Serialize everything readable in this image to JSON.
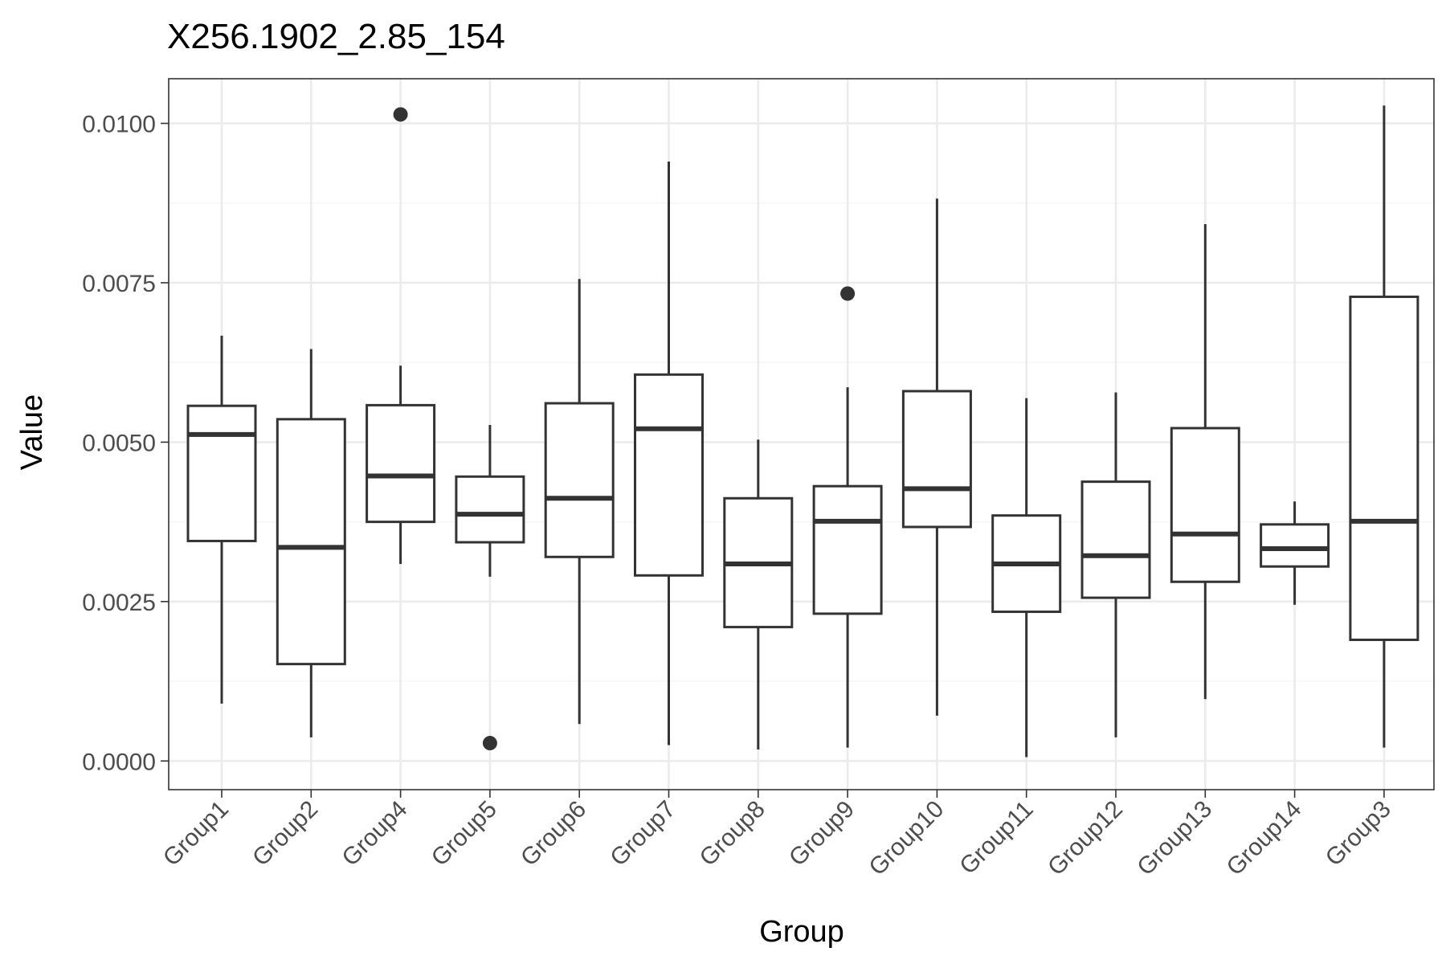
{
  "chart_data": {
    "type": "boxplot",
    "title": "X256.1902_2.85_154",
    "xlabel": "Group",
    "ylabel": "Value",
    "ylim": [
      -0.00045,
      0.0107
    ],
    "yticks": [
      0.0,
      0.0025,
      0.005,
      0.0075,
      0.01
    ],
    "ytick_labels": [
      "0.0000",
      "0.0025",
      "0.0050",
      "0.0075",
      "0.0100"
    ],
    "grid": true,
    "categories": [
      "Group1",
      "Group2",
      "Group4",
      "Group5",
      "Group6",
      "Group7",
      "Group8",
      "Group9",
      "Group10",
      "Group11",
      "Group12",
      "Group13",
      "Group14",
      "Group3"
    ],
    "boxes": [
      {
        "group": "Group1",
        "whisker_low": 0.0009,
        "q1": 0.00345,
        "median": 0.00512,
        "q3": 0.00557,
        "whisker_high": 0.00667,
        "outliers": []
      },
      {
        "group": "Group2",
        "whisker_low": 0.00037,
        "q1": 0.00152,
        "median": 0.00335,
        "q3": 0.00536,
        "whisker_high": 0.00646,
        "outliers": []
      },
      {
        "group": "Group4",
        "whisker_low": 0.00309,
        "q1": 0.00375,
        "median": 0.00447,
        "q3": 0.00558,
        "whisker_high": 0.0062,
        "outliers": [
          0.01014
        ]
      },
      {
        "group": "Group5",
        "whisker_low": 0.00289,
        "q1": 0.00343,
        "median": 0.00387,
        "q3": 0.00446,
        "whisker_high": 0.00527,
        "outliers": [
          0.00028
        ]
      },
      {
        "group": "Group6",
        "whisker_low": 0.00058,
        "q1": 0.0032,
        "median": 0.00412,
        "q3": 0.00561,
        "whisker_high": 0.00756,
        "outliers": []
      },
      {
        "group": "Group7",
        "whisker_low": 0.00025,
        "q1": 0.00291,
        "median": 0.00521,
        "q3": 0.00606,
        "whisker_high": 0.0094,
        "outliers": []
      },
      {
        "group": "Group8",
        "whisker_low": 0.00018,
        "q1": 0.0021,
        "median": 0.00309,
        "q3": 0.00412,
        "whisker_high": 0.00504,
        "outliers": []
      },
      {
        "group": "Group9",
        "whisker_low": 0.00021,
        "q1": 0.00231,
        "median": 0.00376,
        "q3": 0.00431,
        "whisker_high": 0.00586,
        "outliers": [
          0.00733
        ]
      },
      {
        "group": "Group10",
        "whisker_low": 0.00071,
        "q1": 0.00367,
        "median": 0.00427,
        "q3": 0.0058,
        "whisker_high": 0.00882,
        "outliers": []
      },
      {
        "group": "Group11",
        "whisker_low": 6e-05,
        "q1": 0.00234,
        "median": 0.00309,
        "q3": 0.00385,
        "whisker_high": 0.00569,
        "outliers": []
      },
      {
        "group": "Group12",
        "whisker_low": 0.00037,
        "q1": 0.00256,
        "median": 0.00322,
        "q3": 0.00438,
        "whisker_high": 0.00578,
        "outliers": []
      },
      {
        "group": "Group13",
        "whisker_low": 0.00097,
        "q1": 0.00281,
        "median": 0.00356,
        "q3": 0.00522,
        "whisker_high": 0.00842,
        "outliers": []
      },
      {
        "group": "Group14",
        "whisker_low": 0.00245,
        "q1": 0.00305,
        "median": 0.00333,
        "q3": 0.00371,
        "whisker_high": 0.00407,
        "outliers": []
      },
      {
        "group": "Group3",
        "whisker_low": 0.00021,
        "q1": 0.0019,
        "median": 0.00376,
        "q3": 0.00728,
        "whisker_high": 0.01028,
        "outliers": []
      }
    ],
    "colors": {
      "box_line": "#333333",
      "box_fill": "#ffffff",
      "grid_major": "#ebebeb",
      "grid_minor": "#f5f5f5",
      "panel_border": "#333333",
      "tick_label": "#4d4d4d"
    }
  }
}
